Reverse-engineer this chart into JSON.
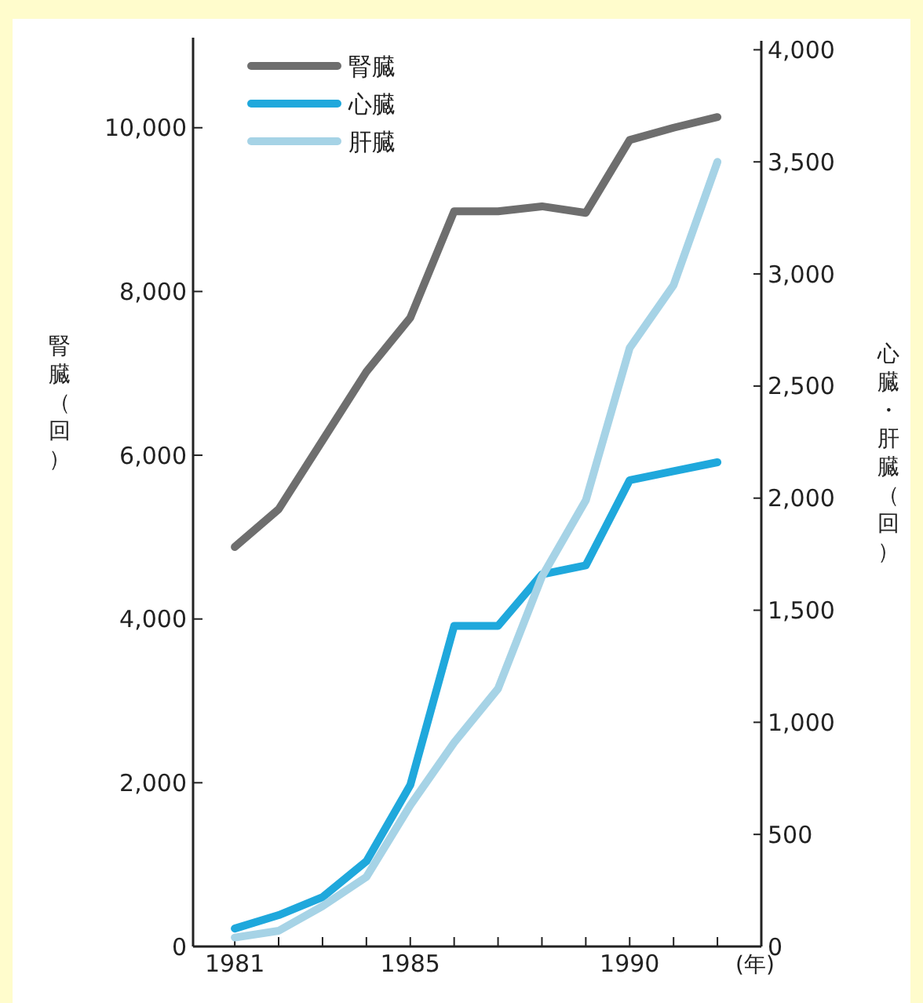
{
  "chart_data": {
    "type": "line",
    "x": [
      1981,
      1982,
      1983,
      1984,
      1985,
      1986,
      1987,
      1988,
      1989,
      1990,
      1991,
      1992
    ],
    "xlim": [
      1980.05,
      1993
    ],
    "xticks": [
      1981,
      {
        "value": 1982,
        "label": null
      },
      {
        "value": 1983,
        "label": null
      },
      {
        "value": 1984,
        "label": null
      },
      1985,
      {
        "value": 1986,
        "label": null
      },
      {
        "value": 1987,
        "label": null
      },
      {
        "value": 1988,
        "label": null
      },
      {
        "value": 1989,
        "label": null
      },
      1990,
      {
        "value": 1991,
        "label": null
      },
      {
        "value": 1992,
        "label": null
      }
    ],
    "xlabel": "(年)",
    "ylabel": "腎臓（回）",
    "y2label": "心臓・肝臓（回）",
    "ylim": [
      0,
      11100
    ],
    "yticks": [
      {
        "value": 0,
        "label": "0"
      },
      {
        "value": 2000,
        "label": "2,000"
      },
      {
        "value": 4000,
        "label": "4,000"
      },
      {
        "value": 6000,
        "label": "6,000"
      },
      {
        "value": 8000,
        "label": "8,000"
      },
      {
        "value": 10000,
        "label": "10,000"
      }
    ],
    "y2lim": [
      0,
      4040
    ],
    "y2ticks": [
      {
        "value": 0,
        "label": "0"
      },
      {
        "value": 500,
        "label": "500"
      },
      {
        "value": 1000,
        "label": "1,000"
      },
      {
        "value": 1500,
        "label": "1,500"
      },
      {
        "value": 2000,
        "label": "2,000"
      },
      {
        "value": 2500,
        "label": "2,500"
      },
      {
        "value": 3000,
        "label": "3,000"
      },
      {
        "value": 3500,
        "label": "3,500"
      },
      {
        "value": 4000,
        "label": "4,000"
      }
    ],
    "legend": "top left",
    "series": [
      {
        "name": "腎臓",
        "color": "#6e6e6e",
        "values": [
          4880,
          5340,
          6180,
          7020,
          7680,
          8980,
          8980,
          9040,
          8960,
          9850,
          10000,
          10130
        ]
      },
      {
        "name": "心臓",
        "color": "#1fa8dc",
        "axis": "y2",
        "values": [
          80,
          140,
          220,
          380,
          720,
          1430,
          1430,
          1660,
          1700,
          2080,
          2120,
          2160
        ]
      },
      {
        "name": "肝臓",
        "color": "#a6d3e6",
        "axis": "y2",
        "values": [
          40,
          70,
          180,
          310,
          630,
          910,
          1150,
          1650,
          1990,
          2670,
          2950,
          3500
        ]
      }
    ]
  }
}
